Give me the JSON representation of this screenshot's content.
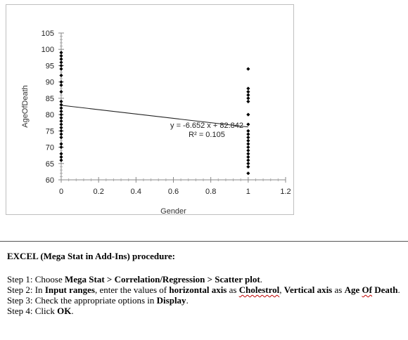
{
  "chart_data": {
    "type": "scatter",
    "xlabel": "Gender",
    "ylabel": "AgeOfDeath",
    "xlim": [
      0,
      1.2
    ],
    "ylim": [
      60,
      105
    ],
    "x_ticks": [
      "0",
      "0.2",
      "0.4",
      "0.6",
      "0.8",
      "1",
      "1.2"
    ],
    "y_ticks": [
      "60",
      "65",
      "70",
      "75",
      "80",
      "85",
      "90",
      "95",
      "100",
      "105"
    ],
    "series": [
      {
        "points": [
          {
            "x": 0,
            "y": 99
          },
          {
            "x": 0,
            "y": 98
          },
          {
            "x": 0,
            "y": 97
          },
          {
            "x": 0,
            "y": 96
          },
          {
            "x": 0,
            "y": 95
          },
          {
            "x": 0,
            "y": 94
          },
          {
            "x": 0,
            "y": 92
          },
          {
            "x": 0,
            "y": 90
          },
          {
            "x": 0,
            "y": 89
          },
          {
            "x": 0,
            "y": 87
          },
          {
            "x": 0,
            "y": 84
          },
          {
            "x": 0,
            "y": 83
          },
          {
            "x": 0,
            "y": 82
          },
          {
            "x": 0,
            "y": 81
          },
          {
            "x": 0,
            "y": 80
          },
          {
            "x": 0,
            "y": 79
          },
          {
            "x": 0,
            "y": 78
          },
          {
            "x": 0,
            "y": 77
          },
          {
            "x": 0,
            "y": 76
          },
          {
            "x": 0,
            "y": 75
          },
          {
            "x": 0,
            "y": 74
          },
          {
            "x": 0,
            "y": 73
          },
          {
            "x": 0,
            "y": 71
          },
          {
            "x": 0,
            "y": 70
          },
          {
            "x": 0,
            "y": 68
          },
          {
            "x": 0,
            "y": 67
          },
          {
            "x": 0,
            "y": 66
          },
          {
            "x": 1,
            "y": 94
          },
          {
            "x": 1,
            "y": 88
          },
          {
            "x": 1,
            "y": 87
          },
          {
            "x": 1,
            "y": 86
          },
          {
            "x": 1,
            "y": 85
          },
          {
            "x": 1,
            "y": 84
          },
          {
            "x": 1,
            "y": 80
          },
          {
            "x": 1,
            "y": 77
          },
          {
            "x": 1,
            "y": 75
          },
          {
            "x": 1,
            "y": 74
          },
          {
            "x": 1,
            "y": 73
          },
          {
            "x": 1,
            "y": 72
          },
          {
            "x": 1,
            "y": 71
          },
          {
            "x": 1,
            "y": 70
          },
          {
            "x": 1,
            "y": 69
          },
          {
            "x": 1,
            "y": 68
          },
          {
            "x": 1,
            "y": 67
          },
          {
            "x": 1,
            "y": 66
          },
          {
            "x": 1,
            "y": 65
          },
          {
            "x": 1,
            "y": 64
          },
          {
            "x": 1,
            "y": 62
          }
        ]
      }
    ],
    "trendline": {
      "type": "linear",
      "slope": -6.652,
      "intercept": 82.842,
      "equation_label": "y = -6.652 x + 82.842",
      "r2_label": "R² = 0.105"
    },
    "grid": false,
    "legend": "none"
  },
  "procedure": {
    "heading": "EXCEL (Mega Stat in Add-Ins) procedure:",
    "step1": {
      "prefix": "Step 1: Choose ",
      "bold": "Mega Stat > Correlation/Regression > Scatter plot",
      "suffix": "."
    },
    "step2": {
      "prefix": "Step 2: In ",
      "bold1": "Input ranges",
      "mid1": ", enter the values of ",
      "bold2": "horizontal axis",
      "mid2": " as ",
      "bold3": "Cholestrol",
      "mid3": ", ",
      "bold4": "Vertical axis",
      "mid4": " as ",
      "bold5a": "Age ",
      "bold5b": "Of",
      "bold5c": " Death",
      "suffix": "."
    },
    "step3": {
      "prefix": "Step 3: Check the appropriate options in ",
      "bold": "Display",
      "suffix": "."
    },
    "step4": {
      "prefix": "Step 4: Click ",
      "bold": "OK",
      "suffix": "."
    }
  }
}
